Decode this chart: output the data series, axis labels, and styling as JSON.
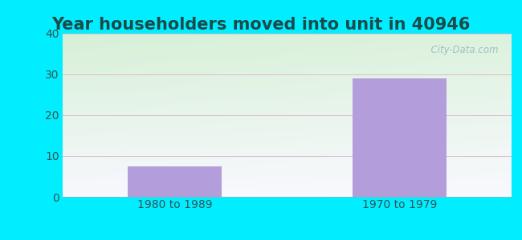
{
  "title": "Year householders moved into unit in 40946",
  "categories": [
    "1980 to 1989",
    "1970 to 1979"
  ],
  "values": [
    7.5,
    29.0
  ],
  "bar_color": "#b39ddb",
  "ylim": [
    0,
    40
  ],
  "yticks": [
    0,
    10,
    20,
    30,
    40
  ],
  "background_outer": "#00eeff",
  "grad_top": "#d6f0d6",
  "grad_bottom": "#f8f8ff",
  "grid_color": "#ddbbcc",
  "title_color": "#1a4a4a",
  "tick_color": "#2a5555",
  "watermark_text": "  City-Data.com",
  "title_fontsize": 15,
  "tick_fontsize": 10
}
